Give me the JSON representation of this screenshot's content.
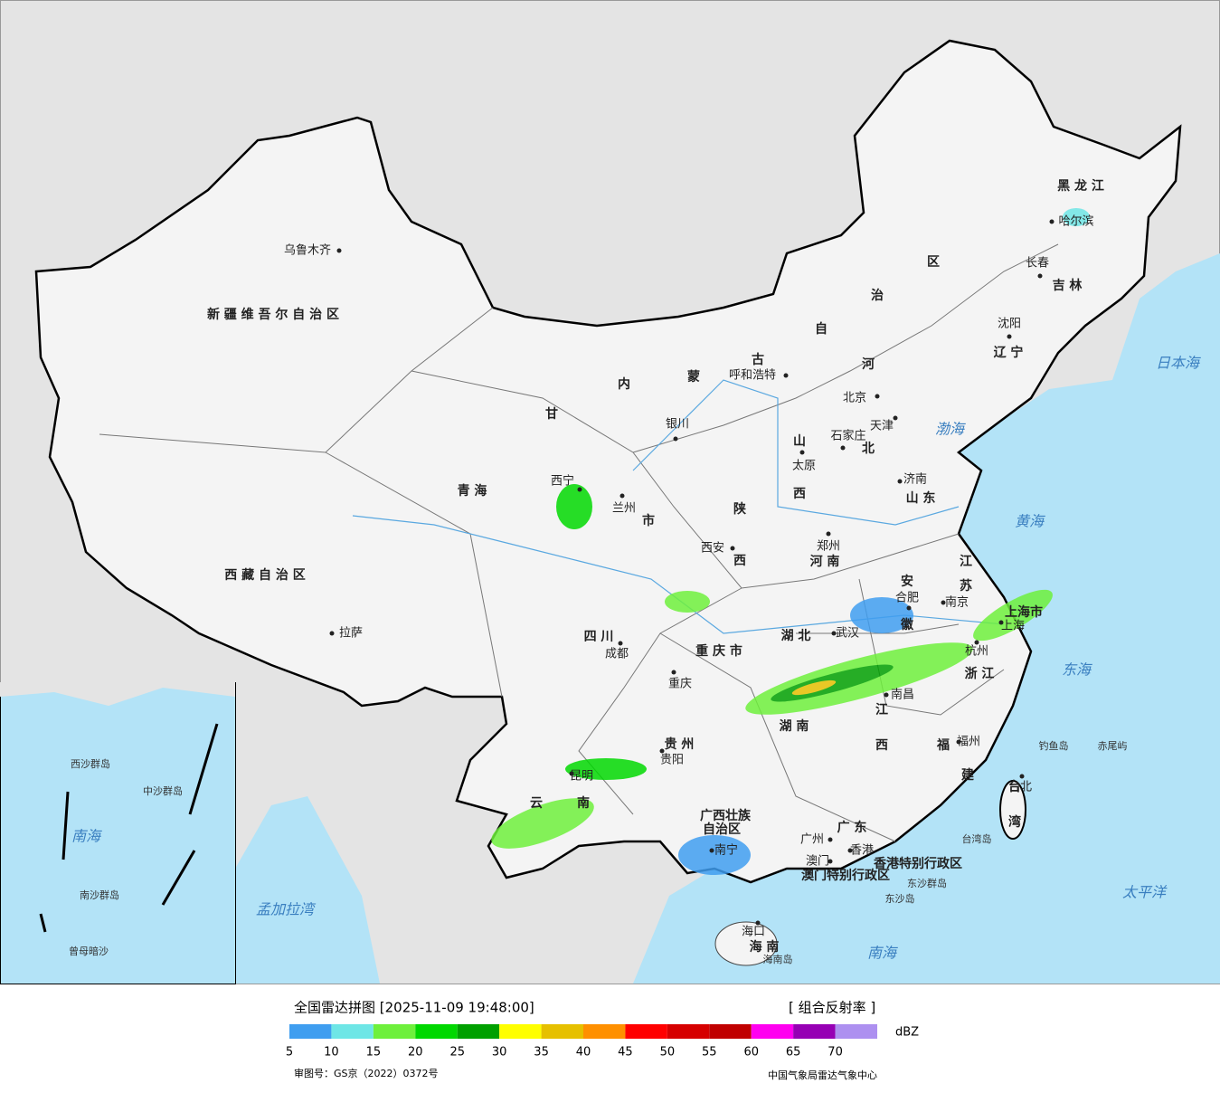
{
  "title": "全国雷达拼图 [2025-11-09 19:48:00]",
  "product": "[ 组合反射率 ]",
  "legend": {
    "unit": "dBZ",
    "colors": [
      "#3f9ef0",
      "#6ee6e6",
      "#6ef03c",
      "#00d800",
      "#00a000",
      "#ffff00",
      "#e6c000",
      "#ff9000",
      "#ff0000",
      "#d60000",
      "#c00000",
      "#ff00f0",
      "#9600b4",
      "#ad90f0"
    ],
    "ticks": [
      5,
      10,
      15,
      20,
      25,
      30,
      35,
      40,
      45,
      50,
      55,
      60,
      65,
      70
    ]
  },
  "provinces": [
    "新 疆 维 吾 尔 自 治 区",
    "西 藏 自 治 区",
    "青 海",
    "甘",
    "内",
    "蒙",
    "古",
    "自",
    "治",
    "区",
    "黑 龙 江",
    "吉 林",
    "辽 宁",
    "河",
    "北",
    "山",
    "西",
    "陕",
    "西",
    "山 东",
    "河 南",
    "江",
    "苏",
    "安",
    "徽",
    "湖 北",
    "四 川",
    "重 庆 市",
    "湖 南",
    "江",
    "西",
    "浙 江",
    "福",
    "建",
    "贵 州",
    "云",
    "南",
    "广西壮族",
    "自治区",
    "广 东",
    "台",
    "湾",
    "海 南",
    "上海市",
    "市",
    "香港特别行政区",
    "澳门特别行政区"
  ],
  "cities": [
    "乌鲁木齐",
    "拉萨",
    "西宁",
    "兰州",
    "银川",
    "呼和浩特",
    "北京",
    "天津",
    "石家庄",
    "太原",
    "济南",
    "郑州",
    "西安",
    "成都",
    "重庆",
    "武汉",
    "合肥",
    "南京",
    "上海",
    "杭州",
    "南昌",
    "福州",
    "贵阳",
    "昆明",
    "南宁",
    "广州",
    "香港",
    "澳门",
    "海口",
    "台北",
    "哈尔滨",
    "长春",
    "沈阳"
  ],
  "seas": [
    "日本海",
    "渤海",
    "黄海",
    "东海",
    "太平洋",
    "南海",
    "孟加拉湾",
    "南海"
  ],
  "islands": [
    "钓鱼岛",
    "赤尾屿",
    "台湾岛",
    "东沙群岛",
    "东沙岛",
    "海南岛",
    "中沙群岛",
    "西沙群岛",
    "南沙群岛",
    "曾母暗沙"
  ],
  "footer": {
    "approval": "审图号：GS京（2022）0372号",
    "source": "中国气象局雷达气象中心"
  }
}
